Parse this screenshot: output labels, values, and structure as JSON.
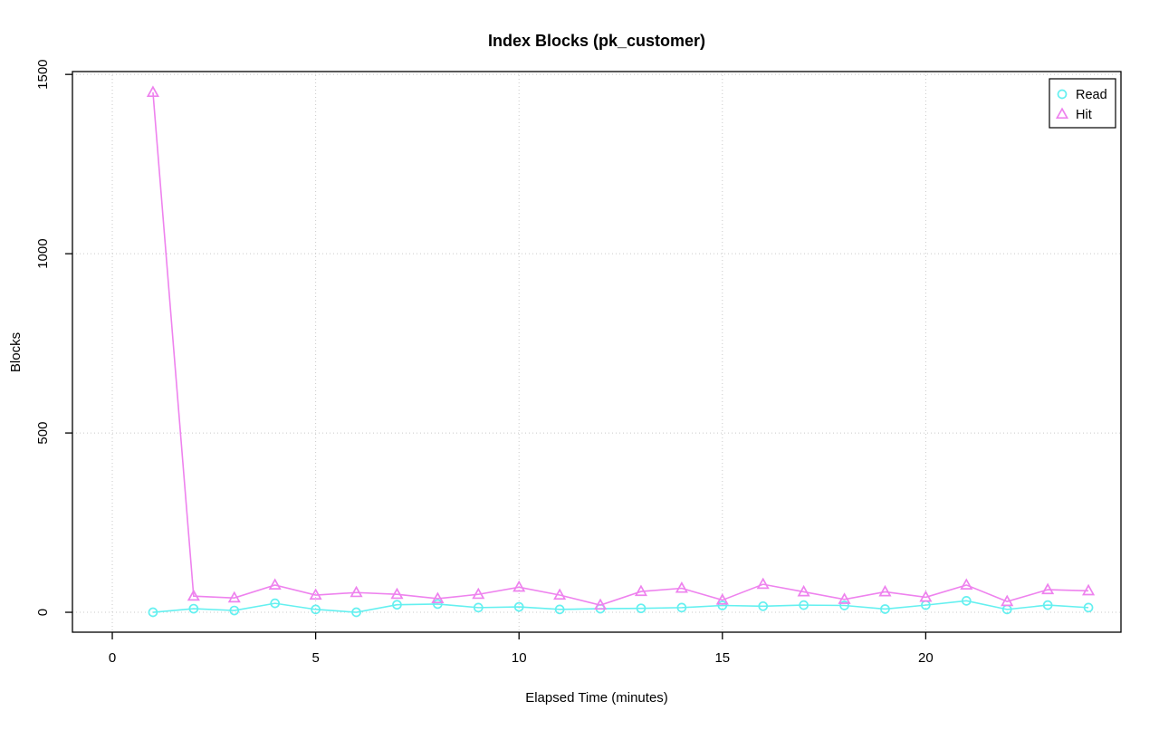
{
  "chart_data": {
    "type": "line",
    "title": "Index Blocks (pk_customer)",
    "xlabel": "Elapsed Time (minutes)",
    "ylabel": "Blocks",
    "x": [
      1,
      2,
      3,
      4,
      5,
      6,
      7,
      8,
      9,
      10,
      11,
      12,
      13,
      14,
      15,
      16,
      17,
      18,
      19,
      20,
      21,
      22,
      23,
      24
    ],
    "series": [
      {
        "name": "Read",
        "marker": "circle",
        "color": "#64F0F0",
        "values": [
          0,
          10,
          5,
          25,
          8,
          0,
          21,
          23,
          13,
          15,
          8,
          10,
          11,
          13,
          19,
          17,
          20,
          19,
          9,
          20,
          32,
          8,
          20,
          13
        ]
      },
      {
        "name": "Hit",
        "marker": "triangle",
        "color": "#EE82EE",
        "values": [
          1450,
          45,
          40,
          76,
          48,
          55,
          50,
          38,
          50,
          70,
          48,
          20,
          58,
          67,
          34,
          78,
          57,
          36,
          57,
          42,
          76,
          30,
          63,
          60
        ]
      }
    ],
    "x_ticks": [
      0,
      5,
      10,
      15,
      20
    ],
    "y_ticks": [
      0,
      500,
      1000,
      1500
    ],
    "xlim": [
      -0.98,
      24.8
    ],
    "ylim": [
      -55.5,
      1508
    ],
    "grid": true,
    "grid_style": "dotted",
    "grid_color": "#C9C9C9",
    "axis_color": "#000000",
    "background_color": "#FFFFFF",
    "legend_position": "top-right"
  }
}
